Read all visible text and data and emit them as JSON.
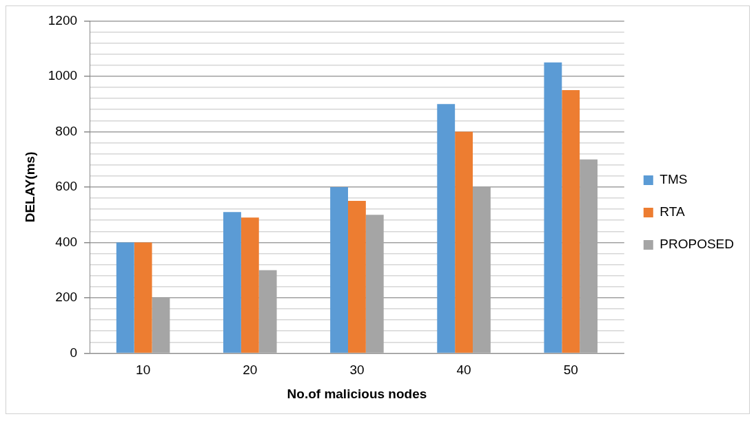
{
  "chart_data": {
    "type": "bar",
    "xlabel": "No.of malicious nodes",
    "ylabel": "DELAY(ms)",
    "categories": [
      "10",
      "20",
      "30",
      "40",
      "50"
    ],
    "series": [
      {
        "name": "TMS",
        "color": "#5b9bd5",
        "values": [
          400,
          510,
          600,
          900,
          1050
        ]
      },
      {
        "name": "RTA",
        "color": "#ed7d31",
        "values": [
          400,
          490,
          550,
          800,
          950
        ]
      },
      {
        "name": "PROPOSED",
        "color": "#a5a5a5",
        "values": [
          200,
          300,
          500,
          600,
          700
        ]
      }
    ],
    "ylim": [
      0,
      1200
    ],
    "yticks": [
      0,
      {
        "value": 40,
        "label": null
      },
      {
        "value": 80,
        "label": null
      },
      {
        "value": 120,
        "label": null
      },
      {
        "value": 160,
        "label": null
      },
      200,
      {
        "value": 240,
        "label": null
      },
      {
        "value": 280,
        "label": null
      },
      {
        "value": 320,
        "label": null
      },
      {
        "value": 360,
        "label": null
      },
      400,
      {
        "value": 440,
        "label": null
      },
      {
        "value": 480,
        "label": null
      },
      {
        "value": 520,
        "label": null
      },
      {
        "value": 560,
        "label": null
      },
      600,
      {
        "value": 640,
        "label": null
      },
      {
        "value": 680,
        "label": null
      },
      {
        "value": 720,
        "label": null
      },
      {
        "value": 760,
        "label": null
      },
      800,
      {
        "value": 840,
        "label": null
      },
      {
        "value": 880,
        "label": null
      },
      {
        "value": 920,
        "label": null
      },
      {
        "value": 960,
        "label": null
      },
      1000,
      {
        "value": 1040,
        "label": null
      },
      {
        "value": 1080,
        "label": null
      },
      {
        "value": 1120,
        "label": null
      },
      {
        "value": 1160,
        "label": null
      },
      1200
    ],
    "grid": "y",
    "legend": "right"
  }
}
